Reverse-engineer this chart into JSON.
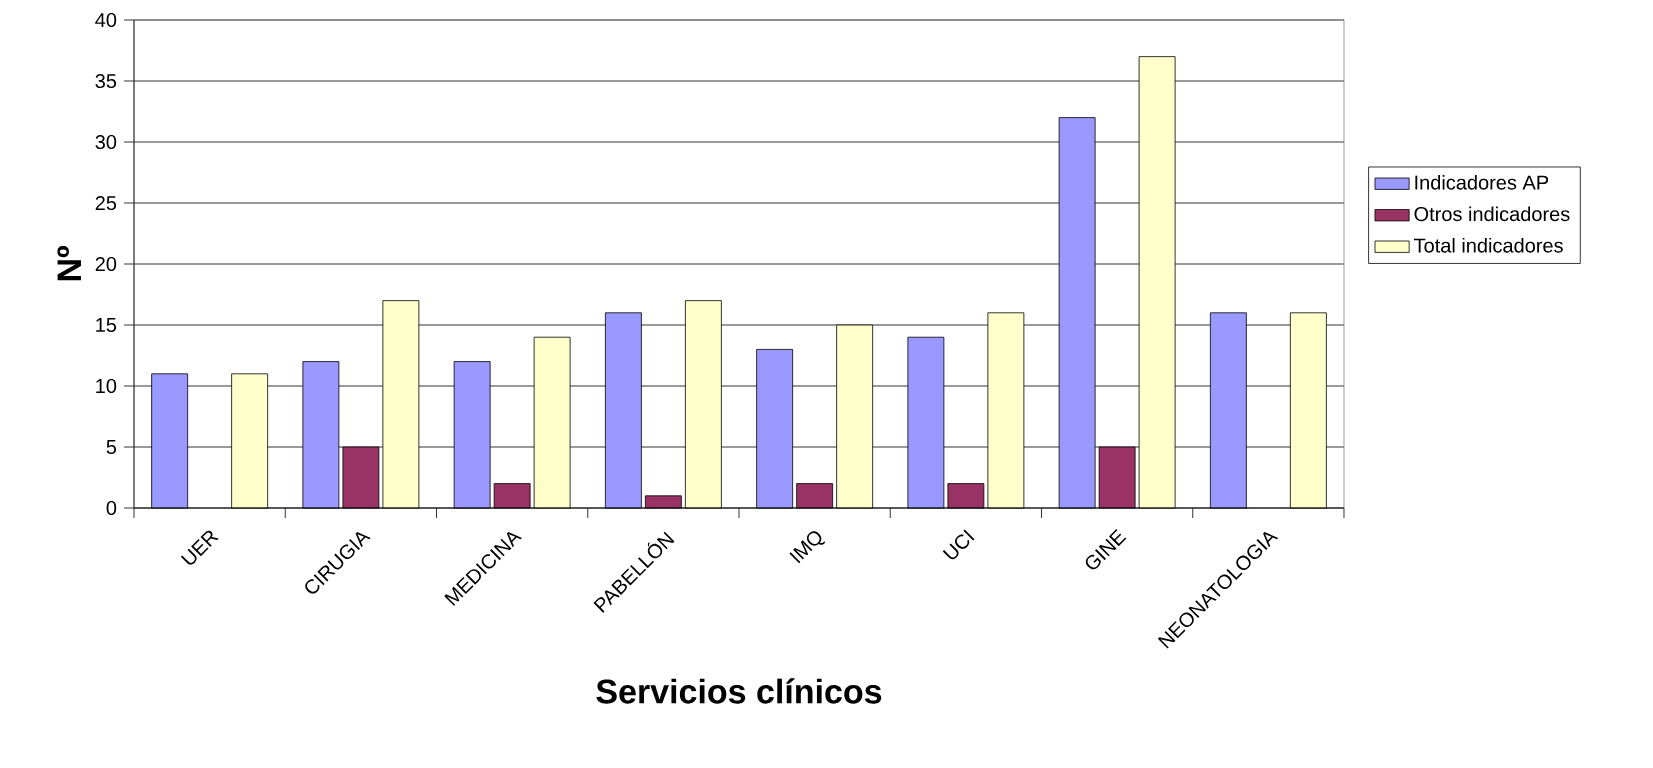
{
  "chart_data": {
    "type": "bar",
    "xlabel": "Servicios clínicos",
    "ylabel": "Nº",
    "categories": [
      "UER",
      "CIRUGIA",
      "MEDICINA",
      "PABELLÓN",
      "IMQ",
      "UCI",
      "GINE",
      "NEONATOLOGIA"
    ],
    "series": [
      {
        "name": "Indicadores AP",
        "color": "#9999ff",
        "values": [
          11,
          12,
          12,
          16,
          13,
          14,
          32,
          16
        ]
      },
      {
        "name": "Otros indicadores",
        "color": "#993366",
        "values": [
          null,
          5,
          2,
          1,
          2,
          2,
          5,
          null
        ]
      },
      {
        "name": "Total indicadores",
        "color": "#ffffcc",
        "values": [
          11,
          17,
          14,
          17,
          15,
          16,
          37,
          16
        ]
      }
    ],
    "ylim": [
      0,
      40
    ],
    "yticks": [
      0,
      5,
      10,
      15,
      20,
      25,
      30,
      35,
      40
    ],
    "grid": "y",
    "legend": "right"
  }
}
